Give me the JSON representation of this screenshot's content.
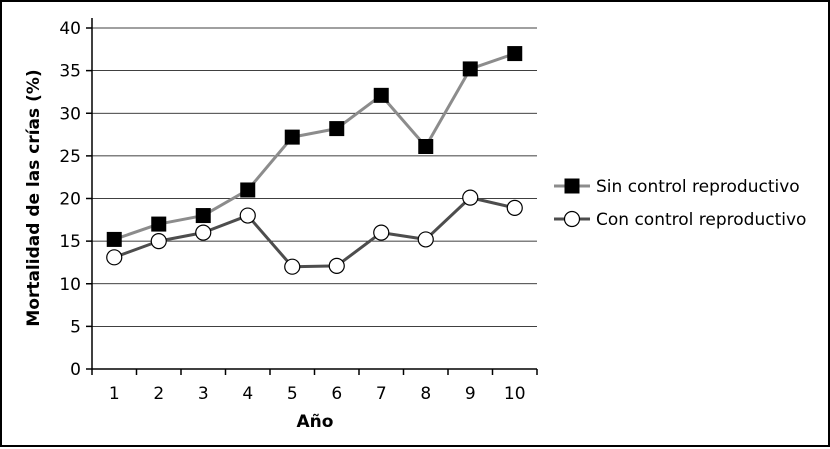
{
  "chart_data": {
    "type": "line",
    "title": "",
    "xlabel": "Año",
    "ylabel": "Mortalidad de las crías (%)",
    "categories": [
      "1",
      "2",
      "3",
      "4",
      "5",
      "6",
      "7",
      "8",
      "9",
      "10"
    ],
    "ylim": [
      0,
      40
    ],
    "yticks": [
      "0",
      "5",
      "10",
      "15",
      "20",
      "25",
      "30",
      "35",
      "40"
    ],
    "grid": true,
    "legend_position": "right",
    "series": [
      {
        "name": "Sin control reproductivo",
        "values": [
          15.2,
          17,
          18,
          21,
          27.2,
          28.2,
          32.1,
          26.1,
          35.2,
          37
        ],
        "marker": "square",
        "line_color": "#8c8c8c",
        "marker_color": "#000000"
      },
      {
        "name": "Con control reproductivo",
        "values": [
          13.1,
          15,
          16,
          18,
          12,
          12.1,
          16,
          15.2,
          20.1,
          18.9
        ],
        "marker": "circle",
        "line_color": "#4d4d4d",
        "marker_color": "#ffffff"
      }
    ]
  }
}
